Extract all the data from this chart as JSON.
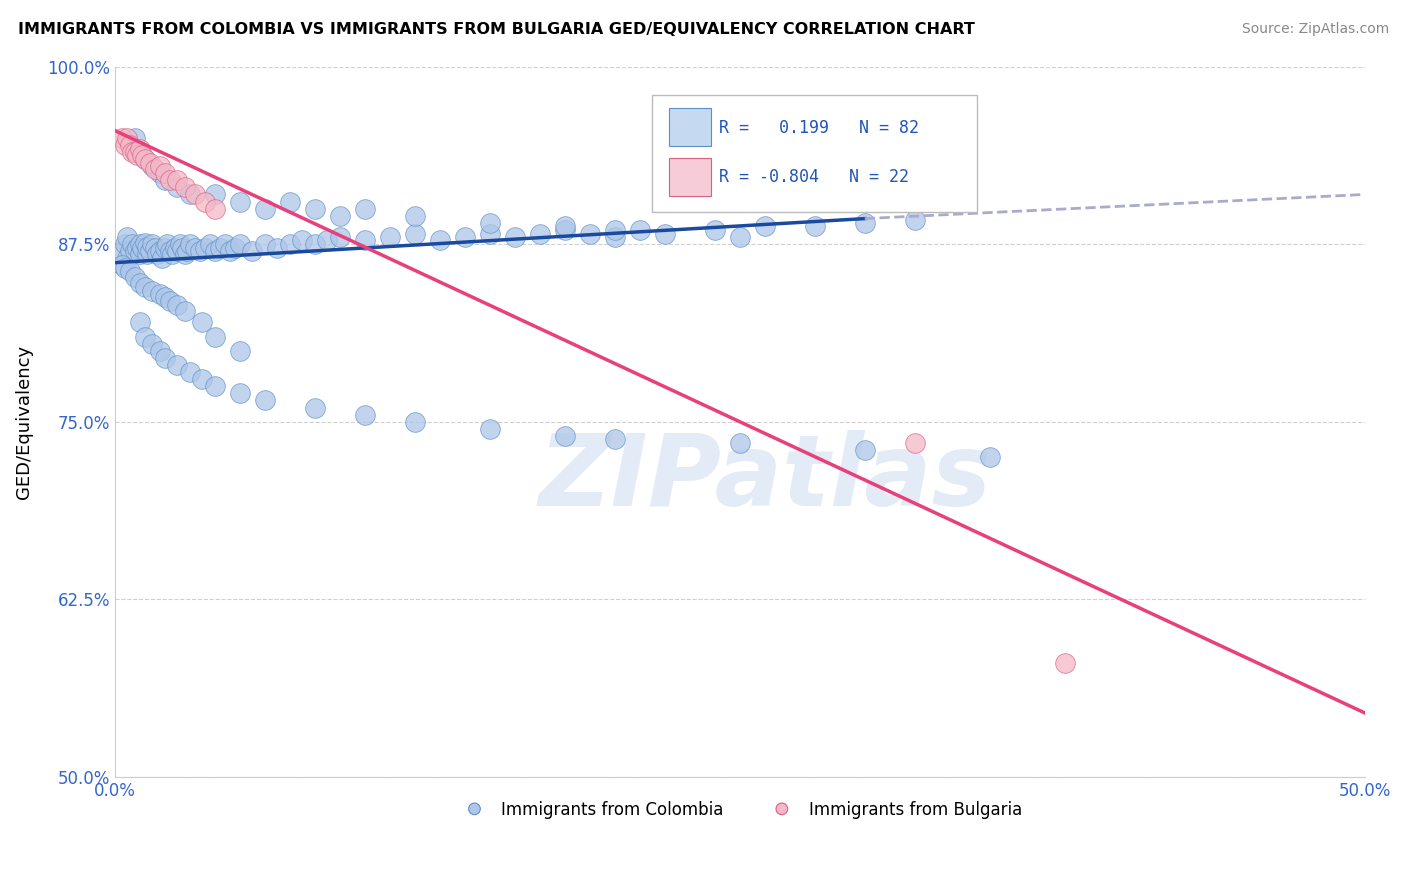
{
  "title": "IMMIGRANTS FROM COLOMBIA VS IMMIGRANTS FROM BULGARIA GED/EQUIVALENCY CORRELATION CHART",
  "source": "Source: ZipAtlas.com",
  "ylabel": "GED/Equivalency",
  "xlim": [
    0.0,
    0.5
  ],
  "ylim": [
    0.5,
    1.0
  ],
  "xticks": [
    0.0,
    0.1,
    0.2,
    0.3,
    0.4,
    0.5
  ],
  "xticklabels": [
    "0.0%",
    "",
    "",
    "",
    "",
    "50.0%"
  ],
  "yticks": [
    0.5,
    0.625,
    0.75,
    0.875,
    1.0
  ],
  "yticklabels": [
    "50.0%",
    "62.5%",
    "75.0%",
    "87.5%",
    "100.0%"
  ],
  "colombia_color": "#aec6e8",
  "colombia_edge": "#5b8fc9",
  "bulgaria_color": "#f4b8c8",
  "bulgaria_edge": "#d96080",
  "colombia_R": 0.199,
  "colombia_N": 82,
  "bulgaria_R": -0.804,
  "bulgaria_N": 22,
  "colombia_line_color": "#1a4a9e",
  "bulgaria_line_color": "#e8407a",
  "dashed_line_color": "#aaaacc",
  "watermark_text": "ZIPatlas",
  "legend_box_color_colombia": "#c5d9f0",
  "legend_box_color_bulgaria": "#f5ccd8",
  "colombia_scatter_x": [
    0.003,
    0.004,
    0.005,
    0.005,
    0.006,
    0.007,
    0.008,
    0.009,
    0.01,
    0.01,
    0.011,
    0.012,
    0.013,
    0.013,
    0.014,
    0.015,
    0.016,
    0.017,
    0.018,
    0.019,
    0.02,
    0.021,
    0.022,
    0.023,
    0.024,
    0.025,
    0.026,
    0.027,
    0.028,
    0.029,
    0.03,
    0.032,
    0.034,
    0.036,
    0.038,
    0.04,
    0.042,
    0.044,
    0.046,
    0.048,
    0.05,
    0.055,
    0.06,
    0.065,
    0.07,
    0.075,
    0.08,
    0.085,
    0.09,
    0.1,
    0.11,
    0.12,
    0.13,
    0.14,
    0.15,
    0.16,
    0.17,
    0.18,
    0.19,
    0.2,
    0.21,
    0.22,
    0.24,
    0.26,
    0.28,
    0.3,
    0.32,
    0.003,
    0.004,
    0.006,
    0.008,
    0.01,
    0.012,
    0.015,
    0.018,
    0.02,
    0.022,
    0.025,
    0.028,
    0.035,
    0.04,
    0.05
  ],
  "colombia_scatter_y": [
    0.87,
    0.875,
    0.88,
    0.865,
    0.87,
    0.875,
    0.87,
    0.872,
    0.868,
    0.875,
    0.872,
    0.876,
    0.868,
    0.873,
    0.87,
    0.875,
    0.872,
    0.868,
    0.87,
    0.865,
    0.872,
    0.875,
    0.87,
    0.868,
    0.872,
    0.87,
    0.875,
    0.872,
    0.868,
    0.87,
    0.875,
    0.872,
    0.87,
    0.872,
    0.875,
    0.87,
    0.872,
    0.875,
    0.87,
    0.872,
    0.875,
    0.87,
    0.875,
    0.872,
    0.875,
    0.878,
    0.875,
    0.878,
    0.88,
    0.878,
    0.88,
    0.882,
    0.878,
    0.88,
    0.882,
    0.88,
    0.882,
    0.885,
    0.882,
    0.88,
    0.885,
    0.882,
    0.885,
    0.888,
    0.888,
    0.89,
    0.892,
    0.86,
    0.858,
    0.856,
    0.852,
    0.848,
    0.845,
    0.842,
    0.84,
    0.838,
    0.835,
    0.832,
    0.828,
    0.82,
    0.81,
    0.8
  ],
  "colombia_scatter_x2": [
    0.008,
    0.01,
    0.012,
    0.015,
    0.018,
    0.02,
    0.025,
    0.03,
    0.04,
    0.05,
    0.06,
    0.07,
    0.08,
    0.09,
    0.1,
    0.12,
    0.15,
    0.18,
    0.2,
    0.25
  ],
  "colombia_scatter_y2": [
    0.95,
    0.94,
    0.935,
    0.93,
    0.925,
    0.92,
    0.915,
    0.91,
    0.91,
    0.905,
    0.9,
    0.905,
    0.9,
    0.895,
    0.9,
    0.895,
    0.89,
    0.888,
    0.885,
    0.88
  ],
  "colombia_scatter_x3": [
    0.01,
    0.012,
    0.015,
    0.018,
    0.02,
    0.025,
    0.03,
    0.035,
    0.04,
    0.05,
    0.06,
    0.08,
    0.1,
    0.12,
    0.15,
    0.18,
    0.2,
    0.25,
    0.3,
    0.35
  ],
  "colombia_scatter_y3": [
    0.82,
    0.81,
    0.805,
    0.8,
    0.795,
    0.79,
    0.785,
    0.78,
    0.775,
    0.77,
    0.765,
    0.76,
    0.755,
    0.75,
    0.745,
    0.74,
    0.738,
    0.735,
    0.73,
    0.725
  ],
  "bulgaria_scatter_x": [
    0.003,
    0.004,
    0.005,
    0.006,
    0.007,
    0.008,
    0.009,
    0.01,
    0.011,
    0.012,
    0.014,
    0.016,
    0.018,
    0.02,
    0.022,
    0.025,
    0.028,
    0.032,
    0.036,
    0.04,
    0.32,
    0.38
  ],
  "bulgaria_scatter_y": [
    0.95,
    0.945,
    0.95,
    0.945,
    0.94,
    0.94,
    0.938,
    0.942,
    0.938,
    0.935,
    0.932,
    0.928,
    0.93,
    0.925,
    0.92,
    0.92,
    0.915,
    0.91,
    0.905,
    0.9,
    0.735,
    0.58
  ],
  "colombia_line_x": [
    0.0,
    0.3
  ],
  "colombia_line_y": [
    0.862,
    0.893
  ],
  "bulgaria_line_x": [
    0.0,
    0.5
  ],
  "bulgaria_line_y": [
    0.955,
    0.545
  ],
  "dashed_line_x": [
    0.3,
    0.5
  ],
  "dashed_line_y": [
    0.893,
    0.91
  ]
}
